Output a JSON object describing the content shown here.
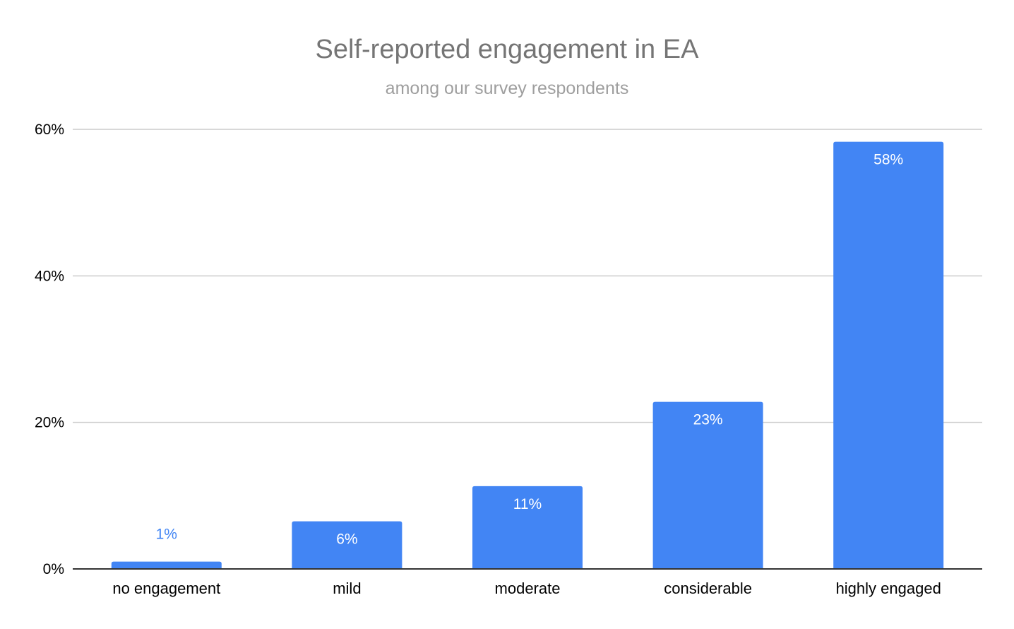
{
  "chart_data": {
    "type": "bar",
    "title": "Self-reported engagement in EA",
    "subtitle": "among our survey respondents",
    "categories": [
      "no engagement",
      "mild",
      "moderate",
      "considerable",
      "highly engaged"
    ],
    "values": [
      1,
      6.5,
      11.3,
      22.8,
      58.3
    ],
    "data_labels": [
      "1%",
      "6%",
      "11%",
      "23%",
      "58%"
    ],
    "y_ticks": [
      0,
      20,
      40,
      60
    ],
    "y_tick_labels": [
      "0%",
      "20%",
      "40%",
      "60%"
    ],
    "ylim": [
      0,
      60
    ],
    "xlabel": "",
    "ylabel": "",
    "grid": true,
    "legend": "none",
    "colors": {
      "bar": "#4285f4",
      "label_inside": "#ffffff",
      "label_outside": "#4285f4",
      "gridline": "#cccccc",
      "baseline": "#333333"
    }
  }
}
